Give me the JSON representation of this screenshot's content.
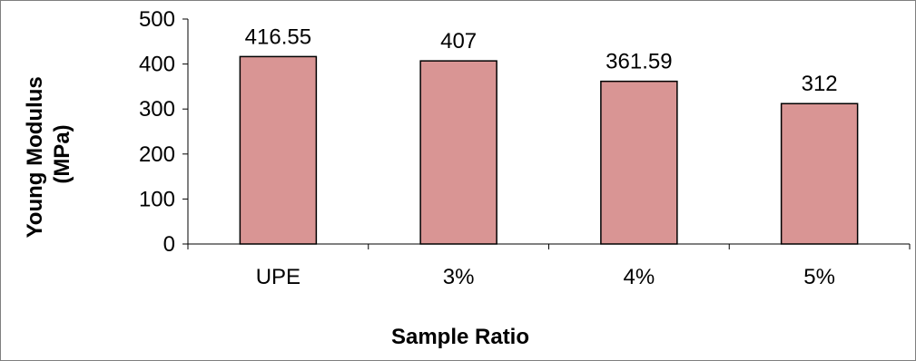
{
  "chart_data": {
    "type": "bar",
    "categories": [
      "UPE",
      "3%",
      "4%",
      "5%"
    ],
    "values": [
      416.55,
      407,
      361.59,
      312
    ],
    "data_labels": [
      "416.55",
      "407",
      "361.59",
      "312"
    ],
    "xlabel": "Sample Ratio",
    "ylabel_lines": [
      "Young Modulus",
      "(MPa)"
    ],
    "ylim": [
      0,
      500
    ],
    "yticks": [
      0,
      100,
      200,
      300,
      400,
      500
    ],
    "ytick_labels": [
      "0",
      "100",
      "200",
      "300",
      "400",
      "500"
    ],
    "grid": false,
    "legend": "none",
    "colors": {
      "bar_fill": "#d99594",
      "bar_stroke": "#000000",
      "axis": "#000000"
    }
  }
}
